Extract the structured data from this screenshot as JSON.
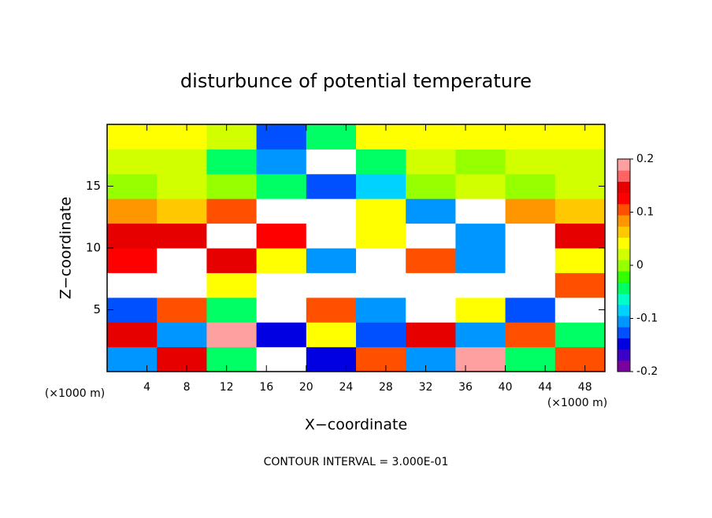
{
  "chart_data": {
    "type": "heatmap",
    "title": "disturbunce of potential temperature",
    "x_label": "X−coordinate",
    "y_label": "Z−coordinate",
    "x_unit": "(×1000 m)",
    "y_unit": "(×1000 m)",
    "footnote": "CONTOUR INTERVAL = 3.000E-01",
    "xlim": [
      0,
      50
    ],
    "ylim": [
      0,
      20
    ],
    "xticks": [
      4,
      8,
      12,
      16,
      20,
      24,
      28,
      32,
      36,
      40,
      44,
      48
    ],
    "yticks": [
      5,
      10,
      15
    ],
    "x": [
      2.5,
      7.5,
      12.5,
      17.5,
      22.5,
      27.5,
      32.5,
      37.5,
      42.5,
      47.5
    ],
    "y": [
      1,
      3,
      5,
      7,
      9,
      11,
      13,
      15,
      17,
      19
    ],
    "z": [
      [
        -0.1,
        0.15,
        -0.05,
        0.25,
        -0.15,
        0.1,
        -0.1,
        0.2,
        -0.05,
        0.1
      ],
      [
        0.15,
        -0.1,
        0.2,
        -0.15,
        0.05,
        -0.12,
        0.15,
        -0.1,
        0.1,
        -0.05
      ],
      [
        -0.12,
        0.1,
        -0.05,
        0.25,
        0.1,
        -0.1,
        0.25,
        0.05,
        -0.12,
        0.25
      ],
      [
        0.25,
        0.25,
        0.05,
        0.25,
        0.25,
        0.25,
        0.25,
        0.25,
        0.25,
        0.1
      ],
      [
        0.12,
        0.25,
        0.15,
        0.05,
        -0.1,
        0.25,
        0.1,
        -0.1,
        0.25,
        0.05
      ],
      [
        0.15,
        0.15,
        0.25,
        0.12,
        0.25,
        0.05,
        0.25,
        -0.1,
        0.25,
        0.15
      ],
      [
        0.08,
        0.06,
        0.1,
        0.25,
        0.25,
        0.05,
        -0.1,
        0.25,
        0.08,
        0.06
      ],
      [
        0.01,
        0.02,
        0.0,
        -0.05,
        -0.12,
        -0.08,
        0.0,
        0.02,
        0.0,
        0.02
      ],
      [
        0.02,
        0.03,
        -0.04,
        -0.1,
        0.25,
        -0.05,
        0.02,
        0.01,
        0.03,
        0.02
      ],
      [
        0.05,
        0.04,
        0.03,
        -0.12,
        -0.05,
        0.04,
        0.05,
        0.04,
        0.05,
        0.04
      ]
    ],
    "clim": [
      -0.2,
      0.2
    ],
    "cticks": [
      -0.2,
      -0.1,
      0,
      0.1,
      0.2
    ],
    "colorscale": [
      "#7b00a0",
      "#3c00c8",
      "#0000e0",
      "#0050ff",
      "#0096ff",
      "#00d2ff",
      "#00ffc8",
      "#00ff64",
      "#32ff00",
      "#96ff00",
      "#d2ff00",
      "#ffff00",
      "#ffc800",
      "#ff9600",
      "#ff5000",
      "#ff0000",
      "#e60000",
      "#ff6464",
      "#ffa0a0"
    ],
    "out_of_range_color": "#ffffff"
  }
}
